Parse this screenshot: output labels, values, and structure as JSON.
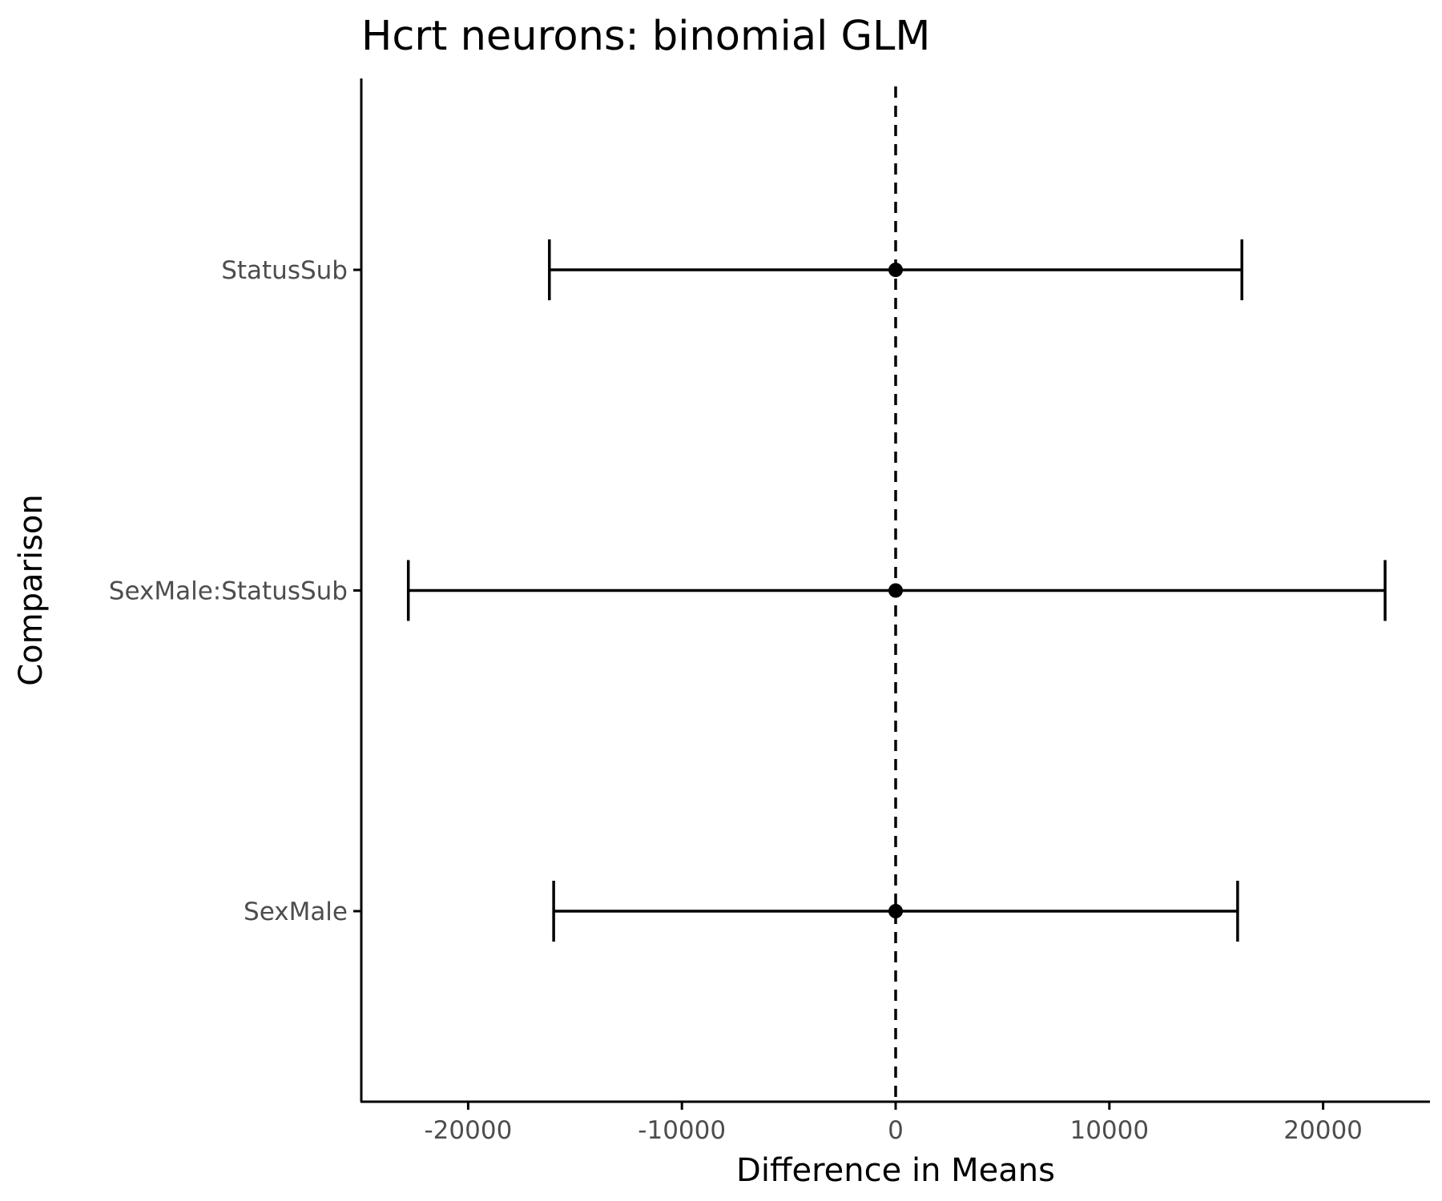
{
  "chart_data": {
    "type": "errorbar",
    "title": "Hcrt neurons: binomial GLM",
    "xlabel": "Difference in Means",
    "ylabel": "Comparison",
    "xlim": [
      -25000,
      25000
    ],
    "x_ticks": [
      -20000,
      -10000,
      0,
      10000,
      20000
    ],
    "x_tick_labels": [
      "-20000",
      "-10000",
      "0",
      "10000",
      "20000"
    ],
    "reference_line": {
      "x": 0,
      "style": "dashed"
    },
    "categories": [
      "StatusSub",
      "SexMale:StatusSub",
      "SexMale"
    ],
    "points": [
      {
        "label": "StatusSub",
        "estimate": 0,
        "lower": -16200,
        "upper": 16200
      },
      {
        "label": "SexMale:StatusSub",
        "estimate": 0,
        "lower": -22800,
        "upper": 22900
      },
      {
        "label": "SexMale",
        "estimate": 0,
        "lower": -16000,
        "upper": 16000
      }
    ],
    "grid": false,
    "colors": {
      "marks": "#000000",
      "tick_labels": "#4d4d4d"
    }
  }
}
